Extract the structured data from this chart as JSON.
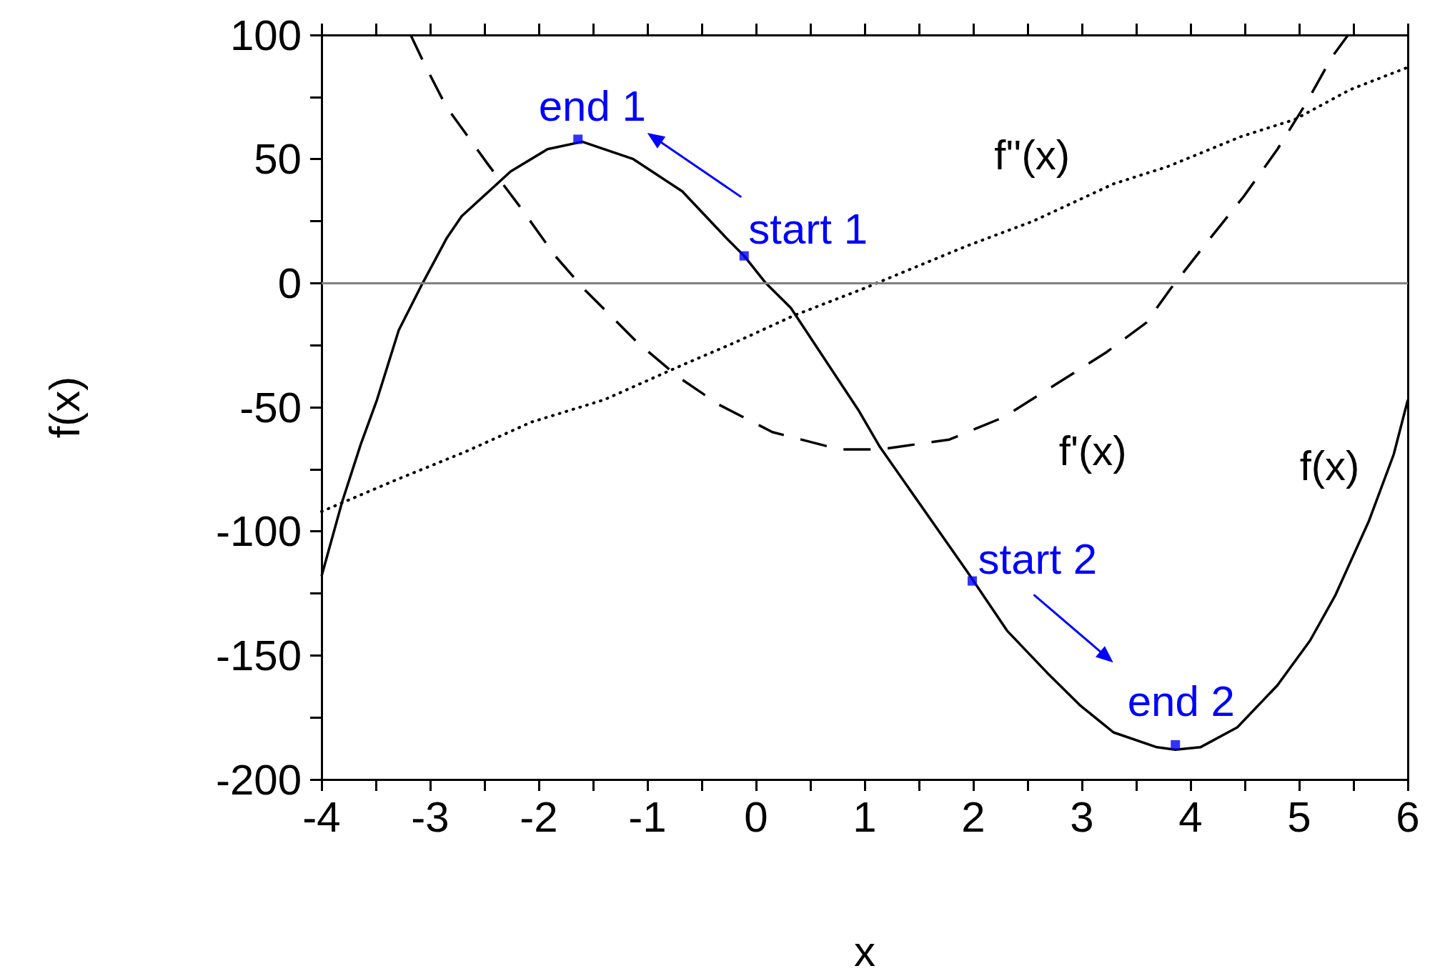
{
  "chart_data": {
    "type": "line",
    "xlabel": "x",
    "ylabel": "f(x)",
    "xlim": [
      -4,
      6
    ],
    "xticks": [
      -4,
      {
        "value": -3.5,
        "label": null
      },
      -3,
      {
        "value": -2.5,
        "label": null
      },
      -2,
      {
        "value": -1.5,
        "label": null
      },
      -1,
      {
        "value": -0.5,
        "label": null
      },
      0,
      {
        "value": 0.5,
        "label": null
      },
      1,
      {
        "value": 1.5,
        "label": null
      },
      2,
      {
        "value": 2.5,
        "label": null
      },
      3,
      {
        "value": 3.5,
        "label": null
      },
      4,
      {
        "value": 4.5,
        "label": null
      },
      5,
      {
        "value": 5.5,
        "label": null
      },
      6
    ],
    "ylim": [
      -200,
      100
    ],
    "yticks": [
      -200,
      {
        "value": -175,
        "label": null
      },
      -150,
      {
        "value": -125,
        "label": null
      },
      -100,
      {
        "value": -75,
        "label": null
      },
      -50,
      {
        "value": -25,
        "label": null
      },
      0,
      {
        "value": 25,
        "label": null
      },
      50,
      {
        "value": 75,
        "label": null
      },
      100
    ],
    "grid": false,
    "legend": false,
    "ref_lines": [
      {
        "axis": "y",
        "value": 0,
        "color": "#808080"
      }
    ],
    "annotations": [
      {
        "text": "start 1",
        "x": -0.11,
        "y": 11
      },
      {
        "text": "end 1",
        "x": -1.64,
        "y": 58
      },
      {
        "text": "start 2",
        "x": 1.99,
        "y": -120
      },
      {
        "text": "end 2",
        "x": 3.86,
        "y": -186
      }
    ],
    "series": [
      {
        "name": "f(x)",
        "color": "#000000",
        "line_style": "solid",
        "x": [
          -4,
          -3.81,
          -3.64,
          -3.49,
          -3.29,
          -3.07,
          -2.85,
          -2.71,
          -2.26,
          -1.92,
          -1.6,
          -1.13,
          -0.68,
          -0.27,
          -0.11,
          0.09,
          0.32,
          0.94,
          1.14,
          1.94,
          2.31,
          2.68,
          2.98,
          3.29,
          3.69,
          3.86,
          4.09,
          4.43,
          4.8,
          5.1,
          5.33,
          5.64,
          5.87,
          6
        ],
        "values": [
          -118,
          -88,
          -65,
          -47,
          -19,
          0,
          18,
          27,
          45,
          54,
          57,
          50,
          37,
          18,
          11,
          0,
          -10,
          -51,
          -66,
          -116,
          -140,
          -157,
          -170,
          -181,
          -187,
          -188,
          -187,
          -179,
          -162,
          -144,
          -126,
          -96,
          -69,
          -47
        ]
      },
      {
        "name": "f'(x)",
        "color": "#000000",
        "line_style": "dashed",
        "x": [
          -3.18,
          -3.05,
          -2.85,
          -2.47,
          -2.16,
          -1.85,
          -1.57,
          -1.09,
          -0.71,
          -0.34,
          0.15,
          0.77,
          1.14,
          1.78,
          2.28,
          2.75,
          3.22,
          3.59,
          3.82,
          4.16,
          4.49,
          4.8,
          5.07,
          5.3,
          5.45
        ],
        "values": [
          100,
          88,
          71,
          48,
          30,
          11,
          -3,
          -24,
          -38,
          -49,
          -60,
          -67,
          -67,
          -63,
          -54,
          -41,
          -28,
          -16,
          -2,
          17,
          35,
          54,
          73,
          91,
          100
        ]
      },
      {
        "name": "f''(x)",
        "color": "#000000",
        "line_style": "dotted",
        "x": [
          -4,
          -3.3,
          -2.68,
          -2.07,
          -1.4,
          -0.68,
          -0.2,
          0.35,
          1.0,
          1.44,
          1.94,
          2.55,
          3.29,
          3.79,
          4.46,
          4.96,
          5.47,
          6
        ],
        "values": [
          -92,
          -79,
          -68,
          -56,
          -47,
          -33,
          -24,
          -13,
          -2,
          6,
          15,
          25,
          40,
          47,
          59,
          66,
          78,
          87
        ]
      },
      {
        "type": "scatter",
        "color": "#0000ff",
        "marker": "square",
        "x": [
          -0.11,
          -1.64,
          1.99,
          3.86
        ],
        "values": [
          11,
          58,
          -120,
          -186
        ]
      }
    ]
  }
}
